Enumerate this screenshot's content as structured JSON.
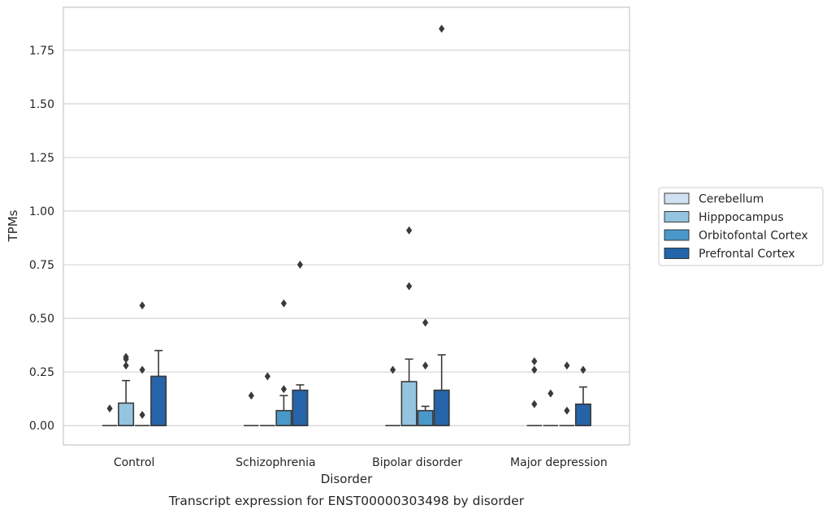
{
  "chart_data": {
    "type": "box",
    "xlabel": "Disorder",
    "ylabel": "TPMs",
    "caption": "Transcript expression for ENST00000303498 by disorder",
    "categories": [
      "Control",
      "Schizophrenia",
      "Bipolar disorder",
      "Major depression"
    ],
    "ylim": [
      -0.09,
      1.95
    ],
    "yticks": [
      0.0,
      0.25,
      0.5,
      0.75,
      1.0,
      1.25,
      1.5,
      1.75
    ],
    "ytick_labels": [
      "0.00",
      "0.25",
      "0.50",
      "0.75",
      "1.00",
      "1.25",
      "1.50",
      "1.75"
    ],
    "grid": "horizontal",
    "legend_position": "right",
    "series": [
      {
        "name": "Cerebellum",
        "color": "#d0e1f2",
        "boxes": [
          {
            "q1": 0,
            "median": 0,
            "q3": 0,
            "whisker_low": 0,
            "whisker_high": 0,
            "outliers": [
              0.08
            ]
          },
          {
            "q1": 0,
            "median": 0,
            "q3": 0,
            "whisker_low": 0,
            "whisker_high": 0,
            "outliers": [
              0.14
            ]
          },
          {
            "q1": 0,
            "median": 0,
            "q3": 0,
            "whisker_low": 0,
            "whisker_high": 0,
            "outliers": [
              0.26
            ]
          },
          {
            "q1": 0,
            "median": 0,
            "q3": 0,
            "whisker_low": 0,
            "whisker_high": 0,
            "outliers": [
              0.3,
              0.26,
              0.1
            ]
          }
        ]
      },
      {
        "name": "Hipppocampus",
        "color": "#94c4df",
        "boxes": [
          {
            "q1": 0,
            "median": 0,
            "q3": 0.105,
            "whisker_low": 0,
            "whisker_high": 0.21,
            "outliers": [
              0.32,
              0.31,
              0.28
            ]
          },
          {
            "q1": 0,
            "median": 0,
            "q3": 0,
            "whisker_low": 0,
            "whisker_high": 0,
            "outliers": [
              0.23
            ]
          },
          {
            "q1": 0,
            "median": 0,
            "q3": 0.205,
            "whisker_low": 0,
            "whisker_high": 0.31,
            "outliers": [
              0.91,
              0.65
            ]
          },
          {
            "q1": 0,
            "median": 0,
            "q3": 0,
            "whisker_low": 0,
            "whisker_high": 0,
            "outliers": [
              0.15
            ]
          }
        ]
      },
      {
        "name": "Orbitofontal Cortex",
        "color": "#4a98c9",
        "boxes": [
          {
            "q1": 0,
            "median": 0,
            "q3": 0,
            "whisker_low": 0,
            "whisker_high": 0,
            "outliers": [
              0.56,
              0.26,
              0.05
            ]
          },
          {
            "q1": 0,
            "median": 0,
            "q3": 0.07,
            "whisker_low": 0,
            "whisker_high": 0.14,
            "outliers": [
              0.57,
              0.17
            ]
          },
          {
            "q1": 0,
            "median": 0,
            "q3": 0.07,
            "whisker_low": 0,
            "whisker_high": 0.09,
            "outliers": [
              0.48,
              0.28
            ]
          },
          {
            "q1": 0,
            "median": 0,
            "q3": 0,
            "whisker_low": 0,
            "whisker_high": 0,
            "outliers": [
              0.28,
              0.07
            ]
          }
        ]
      },
      {
        "name": "Prefrontal Cortex",
        "color": "#2564a8",
        "boxes": [
          {
            "q1": 0,
            "median": 0,
            "q3": 0.23,
            "whisker_low": 0,
            "whisker_high": 0.35,
            "outliers": []
          },
          {
            "q1": 0,
            "median": 0,
            "q3": 0.165,
            "whisker_low": 0,
            "whisker_high": 0.19,
            "outliers": [
              0.75
            ]
          },
          {
            "q1": 0,
            "median": 0,
            "q3": 0.165,
            "whisker_low": 0,
            "whisker_high": 0.33,
            "outliers": [
              1.85
            ]
          },
          {
            "q1": 0,
            "median": 0,
            "q3": 0.1,
            "whisker_low": 0,
            "whisker_high": 0.18,
            "outliers": [
              0.26
            ]
          }
        ]
      }
    ]
  }
}
